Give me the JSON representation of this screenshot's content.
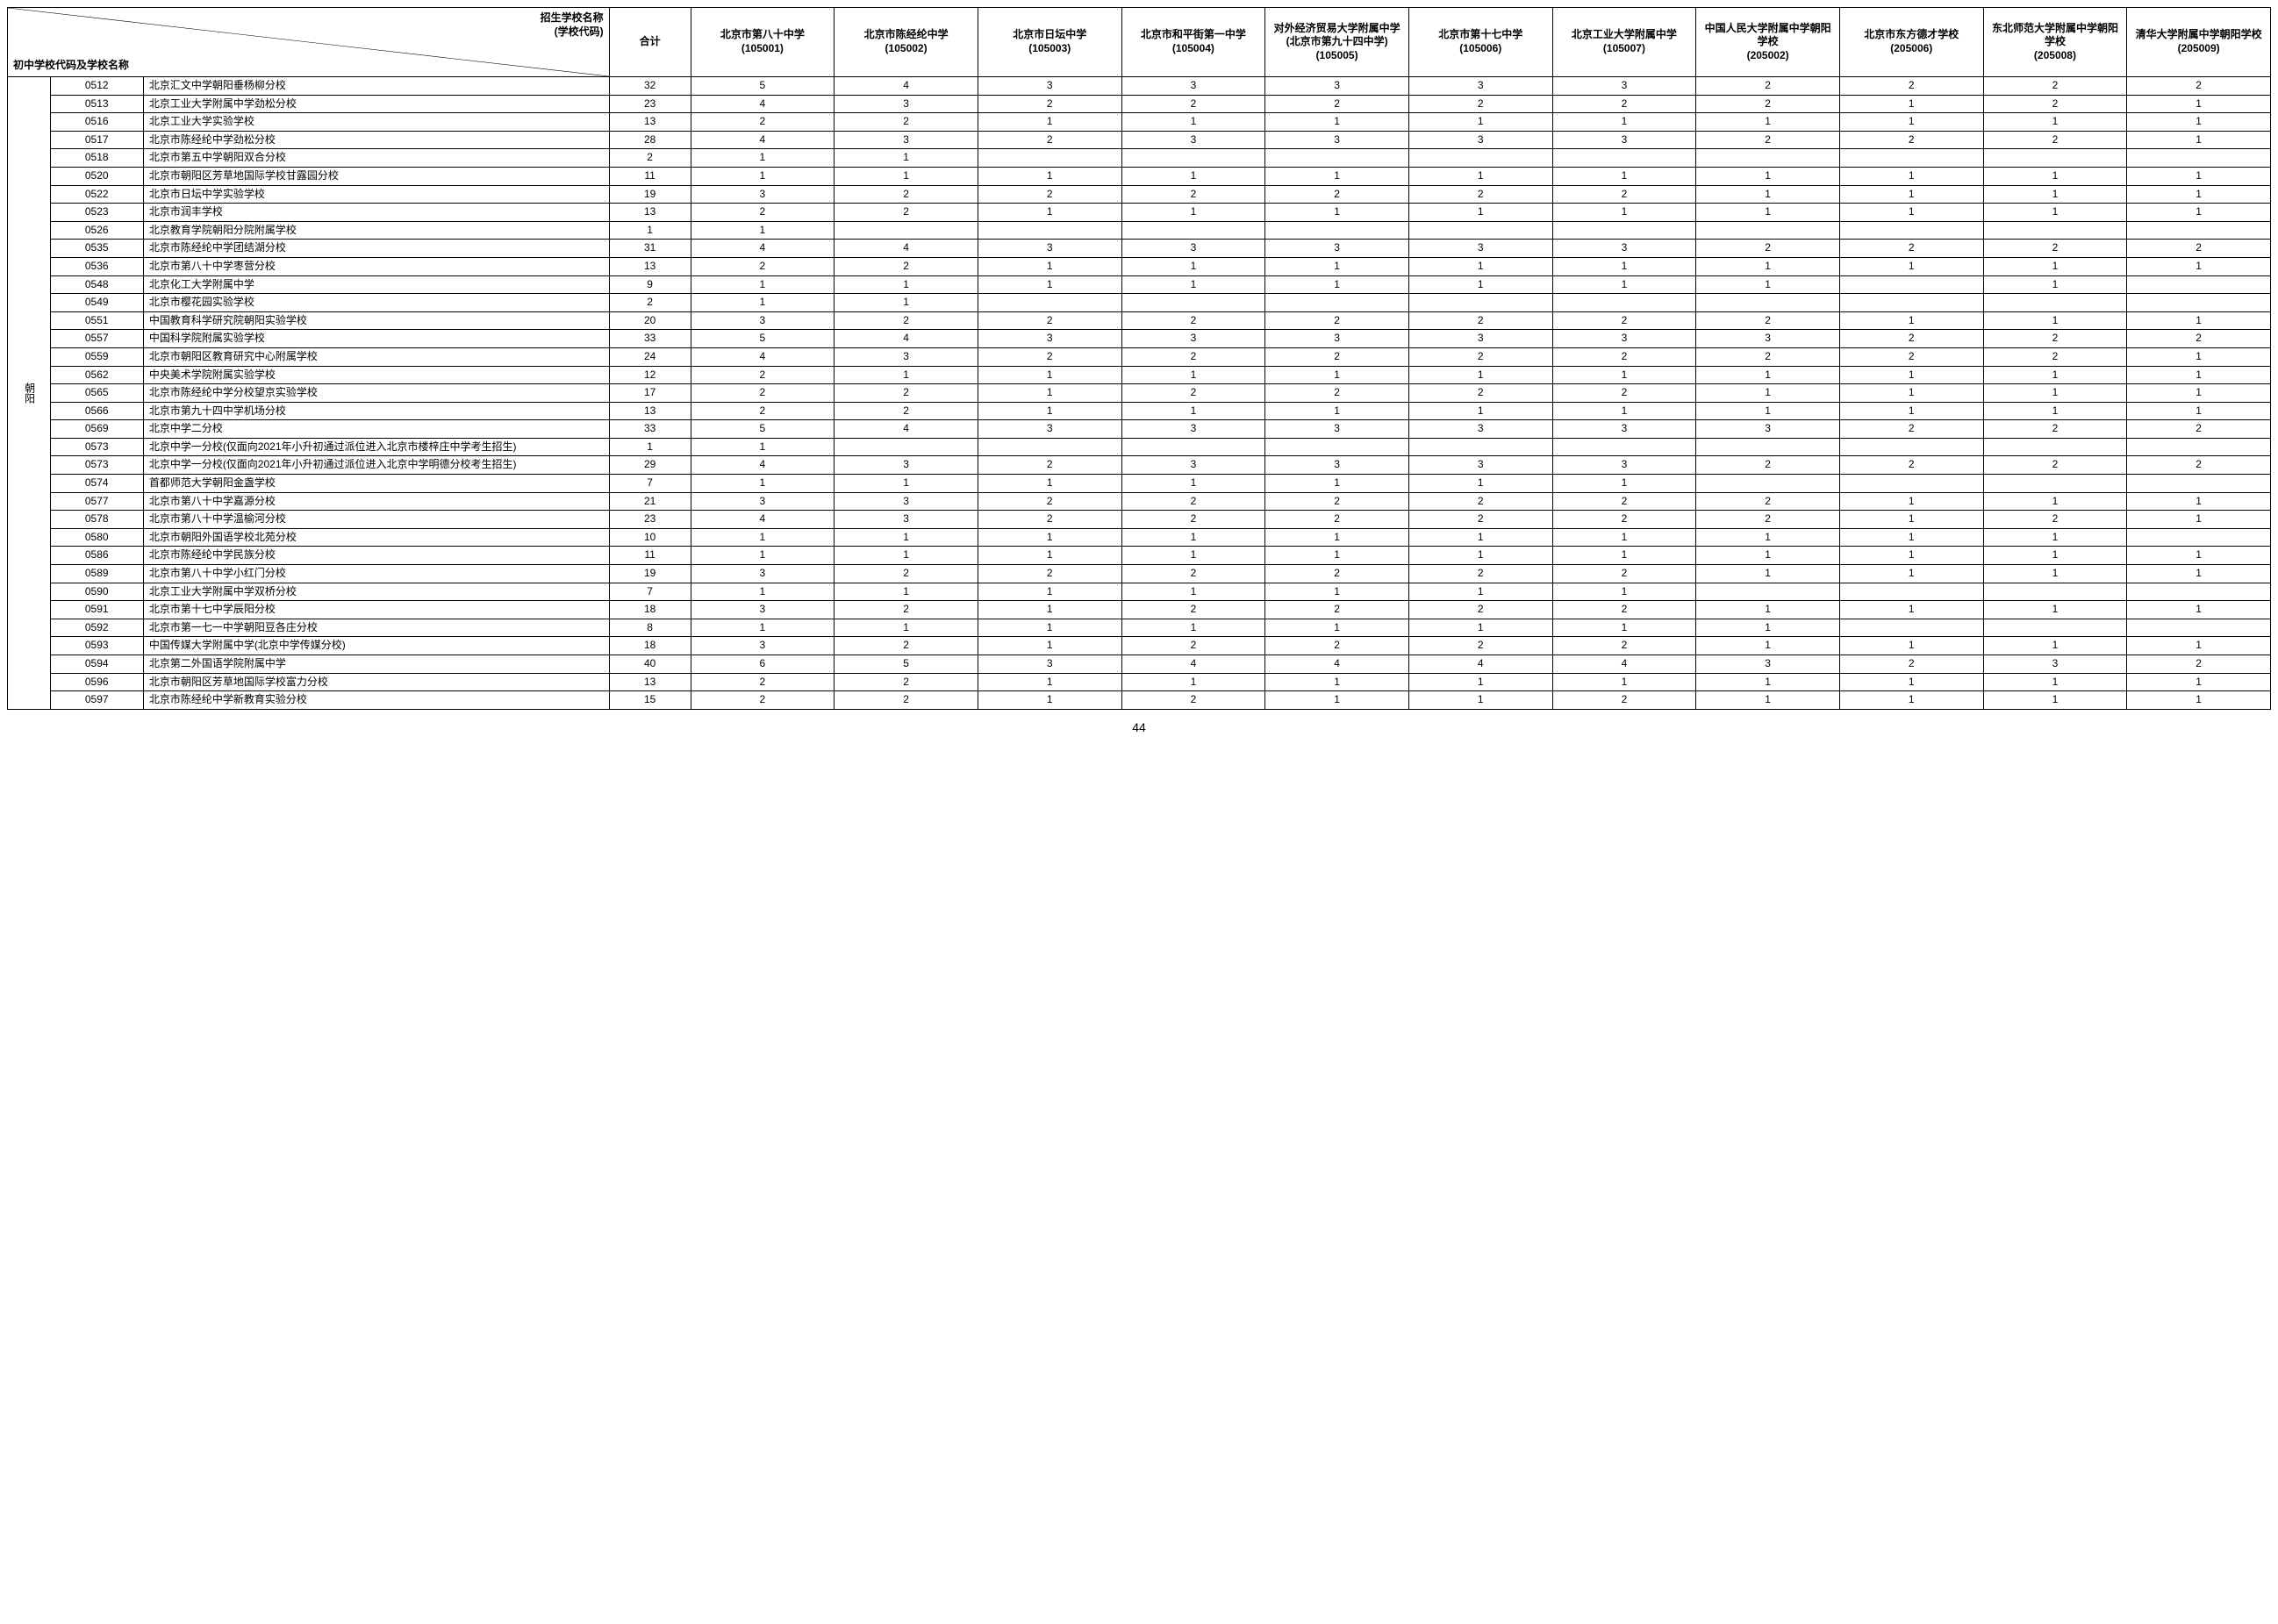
{
  "header": {
    "top_right_line1": "招生学校名称",
    "top_right_line2": "(学校代码)",
    "bottom_left": "初中学校代码及学校名称",
    "sum_label": "合计",
    "district_label": "朝阳",
    "page_number": "44"
  },
  "target_schools": [
    {
      "name": "北京市第八十中学",
      "code": "(105001)"
    },
    {
      "name": "北京市陈经纶中学",
      "code": "(105002)"
    },
    {
      "name": "北京市日坛中学",
      "code": "(105003)"
    },
    {
      "name": "北京市和平街第一中学",
      "code": "(105004)"
    },
    {
      "name": "对外经济贸易大学附属中学(北京市第九十四中学)",
      "code": "(105005)"
    },
    {
      "name": "北京市第十七中学",
      "code": "(105006)"
    },
    {
      "name": "北京工业大学附属中学",
      "code": "(105007)"
    },
    {
      "name": "中国人民大学附属中学朝阳学校",
      "code": "(205002)"
    },
    {
      "name": "北京市东方德才学校",
      "code": "(205006)"
    },
    {
      "name": "东北师范大学附属中学朝阳学校",
      "code": "(205008)"
    },
    {
      "name": "清华大学附属中学朝阳学校",
      "code": "(205009)"
    }
  ],
  "rows": [
    {
      "code": "0512",
      "name": "北京汇文中学朝阳垂杨柳分校",
      "sum": "32",
      "v": [
        "5",
        "4",
        "3",
        "3",
        "3",
        "3",
        "3",
        "2",
        "2",
        "2",
        "2"
      ]
    },
    {
      "code": "0513",
      "name": "北京工业大学附属中学劲松分校",
      "sum": "23",
      "v": [
        "4",
        "3",
        "2",
        "2",
        "2",
        "2",
        "2",
        "2",
        "1",
        "2",
        "1"
      ]
    },
    {
      "code": "0516",
      "name": "北京工业大学实验学校",
      "sum": "13",
      "v": [
        "2",
        "2",
        "1",
        "1",
        "1",
        "1",
        "1",
        "1",
        "1",
        "1",
        "1"
      ]
    },
    {
      "code": "0517",
      "name": "北京市陈经纶中学劲松分校",
      "sum": "28",
      "v": [
        "4",
        "3",
        "2",
        "3",
        "3",
        "3",
        "3",
        "2",
        "2",
        "2",
        "1"
      ]
    },
    {
      "code": "0518",
      "name": "北京市第五中学朝阳双合分校",
      "sum": "2",
      "v": [
        "1",
        "1",
        "",
        "",
        "",
        "",
        "",
        "",
        "",
        "",
        ""
      ]
    },
    {
      "code": "0520",
      "name": "北京市朝阳区芳草地国际学校甘露园分校",
      "sum": "11",
      "v": [
        "1",
        "1",
        "1",
        "1",
        "1",
        "1",
        "1",
        "1",
        "1",
        "1",
        "1"
      ]
    },
    {
      "code": "0522",
      "name": "北京市日坛中学实验学校",
      "sum": "19",
      "v": [
        "3",
        "2",
        "2",
        "2",
        "2",
        "2",
        "2",
        "1",
        "1",
        "1",
        "1"
      ]
    },
    {
      "code": "0523",
      "name": "北京市润丰学校",
      "sum": "13",
      "v": [
        "2",
        "2",
        "1",
        "1",
        "1",
        "1",
        "1",
        "1",
        "1",
        "1",
        "1"
      ]
    },
    {
      "code": "0526",
      "name": "北京教育学院朝阳分院附属学校",
      "sum": "1",
      "v": [
        "1",
        "",
        "",
        "",
        "",
        "",
        "",
        "",
        "",
        "",
        ""
      ]
    },
    {
      "code": "0535",
      "name": "北京市陈经纶中学团结湖分校",
      "sum": "31",
      "v": [
        "4",
        "4",
        "3",
        "3",
        "3",
        "3",
        "3",
        "2",
        "2",
        "2",
        "2"
      ]
    },
    {
      "code": "0536",
      "name": "北京市第八十中学枣营分校",
      "sum": "13",
      "v": [
        "2",
        "2",
        "1",
        "1",
        "1",
        "1",
        "1",
        "1",
        "1",
        "1",
        "1"
      ]
    },
    {
      "code": "0548",
      "name": "北京化工大学附属中学",
      "sum": "9",
      "v": [
        "1",
        "1",
        "1",
        "1",
        "1",
        "1",
        "1",
        "1",
        "",
        "1",
        ""
      ]
    },
    {
      "code": "0549",
      "name": "北京市樱花园实验学校",
      "sum": "2",
      "v": [
        "1",
        "1",
        "",
        "",
        "",
        "",
        "",
        "",
        "",
        "",
        ""
      ]
    },
    {
      "code": "0551",
      "name": "中国教育科学研究院朝阳实验学校",
      "sum": "20",
      "v": [
        "3",
        "2",
        "2",
        "2",
        "2",
        "2",
        "2",
        "2",
        "1",
        "1",
        "1"
      ]
    },
    {
      "code": "0557",
      "name": "中国科学院附属实验学校",
      "sum": "33",
      "v": [
        "5",
        "4",
        "3",
        "3",
        "3",
        "3",
        "3",
        "3",
        "2",
        "2",
        "2"
      ]
    },
    {
      "code": "0559",
      "name": "北京市朝阳区教育研究中心附属学校",
      "sum": "24",
      "v": [
        "4",
        "3",
        "2",
        "2",
        "2",
        "2",
        "2",
        "2",
        "2",
        "2",
        "1"
      ]
    },
    {
      "code": "0562",
      "name": "中央美术学院附属实验学校",
      "sum": "12",
      "v": [
        "2",
        "1",
        "1",
        "1",
        "1",
        "1",
        "1",
        "1",
        "1",
        "1",
        "1"
      ]
    },
    {
      "code": "0565",
      "name": "北京市陈经纶中学分校望京实验学校",
      "sum": "17",
      "v": [
        "2",
        "2",
        "1",
        "2",
        "2",
        "2",
        "2",
        "1",
        "1",
        "1",
        "1"
      ]
    },
    {
      "code": "0566",
      "name": "北京市第九十四中学机场分校",
      "sum": "13",
      "v": [
        "2",
        "2",
        "1",
        "1",
        "1",
        "1",
        "1",
        "1",
        "1",
        "1",
        "1"
      ]
    },
    {
      "code": "0569",
      "name": "北京中学二分校",
      "sum": "33",
      "v": [
        "5",
        "4",
        "3",
        "3",
        "3",
        "3",
        "3",
        "3",
        "2",
        "2",
        "2"
      ]
    },
    {
      "code": "0573",
      "name": "北京中学一分校(仅面向2021年小升初通过派位进入北京市楼梓庄中学考生招生)",
      "sum": "1",
      "v": [
        "1",
        "",
        "",
        "",
        "",
        "",
        "",
        "",
        "",
        "",
        ""
      ]
    },
    {
      "code": "0573",
      "name": "北京中学一分校(仅面向2021年小升初通过派位进入北京中学明德分校考生招生)",
      "sum": "29",
      "v": [
        "4",
        "3",
        "2",
        "3",
        "3",
        "3",
        "3",
        "2",
        "2",
        "2",
        "2"
      ]
    },
    {
      "code": "0574",
      "name": "首都师范大学朝阳金盏学校",
      "sum": "7",
      "v": [
        "1",
        "1",
        "1",
        "1",
        "1",
        "1",
        "1",
        "",
        "",
        "",
        ""
      ]
    },
    {
      "code": "0577",
      "name": "北京市第八十中学嘉源分校",
      "sum": "21",
      "v": [
        "3",
        "3",
        "2",
        "2",
        "2",
        "2",
        "2",
        "2",
        "1",
        "1",
        "1"
      ]
    },
    {
      "code": "0578",
      "name": "北京市第八十中学温榆河分校",
      "sum": "23",
      "v": [
        "4",
        "3",
        "2",
        "2",
        "2",
        "2",
        "2",
        "2",
        "1",
        "2",
        "1"
      ]
    },
    {
      "code": "0580",
      "name": "北京市朝阳外国语学校北苑分校",
      "sum": "10",
      "v": [
        "1",
        "1",
        "1",
        "1",
        "1",
        "1",
        "1",
        "1",
        "1",
        "1",
        ""
      ]
    },
    {
      "code": "0586",
      "name": "北京市陈经纶中学民族分校",
      "sum": "11",
      "v": [
        "1",
        "1",
        "1",
        "1",
        "1",
        "1",
        "1",
        "1",
        "1",
        "1",
        "1"
      ]
    },
    {
      "code": "0589",
      "name": "北京市第八十中学小红门分校",
      "sum": "19",
      "v": [
        "3",
        "2",
        "2",
        "2",
        "2",
        "2",
        "2",
        "1",
        "1",
        "1",
        "1"
      ]
    },
    {
      "code": "0590",
      "name": "北京工业大学附属中学双桥分校",
      "sum": "7",
      "v": [
        "1",
        "1",
        "1",
        "1",
        "1",
        "1",
        "1",
        "",
        "",
        "",
        ""
      ]
    },
    {
      "code": "0591",
      "name": "北京市第十七中学辰阳分校",
      "sum": "18",
      "v": [
        "3",
        "2",
        "1",
        "2",
        "2",
        "2",
        "2",
        "1",
        "1",
        "1",
        "1"
      ]
    },
    {
      "code": "0592",
      "name": "北京市第一七一中学朝阳豆各庄分校",
      "sum": "8",
      "v": [
        "1",
        "1",
        "1",
        "1",
        "1",
        "1",
        "1",
        "1",
        "",
        "",
        ""
      ]
    },
    {
      "code": "0593",
      "name": "中国传媒大学附属中学(北京中学传媒分校)",
      "sum": "18",
      "v": [
        "3",
        "2",
        "1",
        "2",
        "2",
        "2",
        "2",
        "1",
        "1",
        "1",
        "1"
      ]
    },
    {
      "code": "0594",
      "name": "北京第二外国语学院附属中学",
      "sum": "40",
      "v": [
        "6",
        "5",
        "3",
        "4",
        "4",
        "4",
        "4",
        "3",
        "2",
        "3",
        "2"
      ]
    },
    {
      "code": "0596",
      "name": "北京市朝阳区芳草地国际学校富力分校",
      "sum": "13",
      "v": [
        "2",
        "2",
        "1",
        "1",
        "1",
        "1",
        "1",
        "1",
        "1",
        "1",
        "1"
      ]
    },
    {
      "code": "0597",
      "name": "北京市陈经纶中学新教育实验分校",
      "sum": "15",
      "v": [
        "2",
        "2",
        "1",
        "2",
        "1",
        "1",
        "2",
        "1",
        "1",
        "1",
        "1"
      ]
    }
  ]
}
